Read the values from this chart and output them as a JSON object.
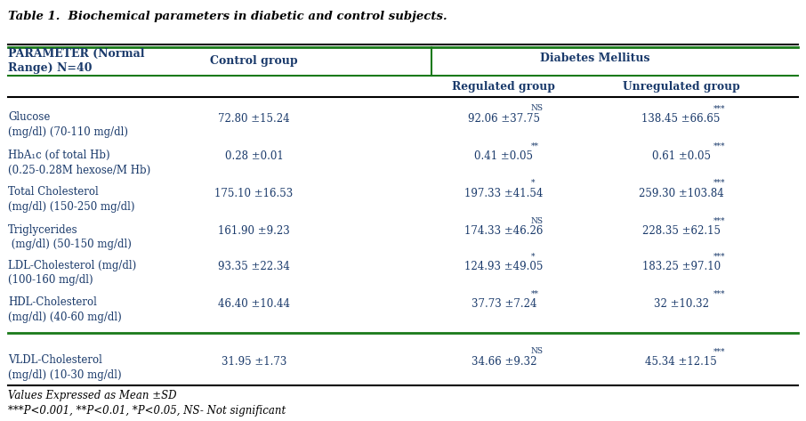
{
  "title": "Table 1.  Biochemical parameters in diabetic and control subjects.",
  "background_color": "#ffffff",
  "header_color": "#1a3a6b",
  "green_line_color": "#1a7a1a",
  "black_line_color": "#000000",
  "rows": [
    {
      "param_line1": "Glucose",
      "param_line2": "(mg/dl) (70-110 mg/dl)",
      "control": "72.80 ±15.24",
      "regulated": "92.06 ±37.75",
      "regulated_sig": "NS",
      "unregulated": "138.45 ±66.65",
      "unregulated_sig": "***"
    },
    {
      "param_line1": "HbA₁c (of total Hb)",
      "param_line2": "(0.25-0.28M hexose/M Hb)",
      "control": "0.28 ±0.01",
      "regulated": "0.41 ±0.05",
      "regulated_sig": "**",
      "unregulated": "0.61 ±0.05",
      "unregulated_sig": "***"
    },
    {
      "param_line1": "Total Cholesterol",
      "param_line2": "(mg/dl) (150-250 mg/dl)",
      "control": "175.10 ±16.53",
      "regulated": "197.33 ±41.54",
      "regulated_sig": "*",
      "unregulated": "259.30 ±103.84",
      "unregulated_sig": "***"
    },
    {
      "param_line1": "Triglycerides",
      "param_line2": " (mg/dl) (50-150 mg/dl)",
      "control": "161.90 ±9.23",
      "regulated": "174.33 ±46.26",
      "regulated_sig": "NS",
      "unregulated": "228.35 ±62.15",
      "unregulated_sig": "***"
    },
    {
      "param_line1": "LDL-Cholesterol (mg/dl)",
      "param_line2": "(100-160 mg/dl)",
      "control": "93.35 ±22.34",
      "regulated": "124.93 ±49.05",
      "regulated_sig": "*",
      "unregulated": "183.25 ±97.10",
      "unregulated_sig": "***"
    },
    {
      "param_line1": "HDL-Cholesterol",
      "param_line2": "(mg/dl) (40-60 mg/dl)",
      "control": "46.40 ±10.44",
      "regulated": "37.73 ±7.24",
      "regulated_sig": "**",
      "unregulated": "32 ±10.32",
      "unregulated_sig": "***"
    },
    {
      "param_line1": "VLDL-Cholesterol",
      "param_line2": "(mg/dl) (10-30 mg/dl)",
      "control": "31.95 ±1.73",
      "regulated": "34.66 ±9.32",
      "regulated_sig": "NS",
      "unregulated": "45.34 ±12.15",
      "unregulated_sig": "***"
    }
  ],
  "footnote1": "Values Expressed as Mean ±SD",
  "footnote2": "***P<0.001, **P<0.01, *P<0.05, NS- Not significant"
}
